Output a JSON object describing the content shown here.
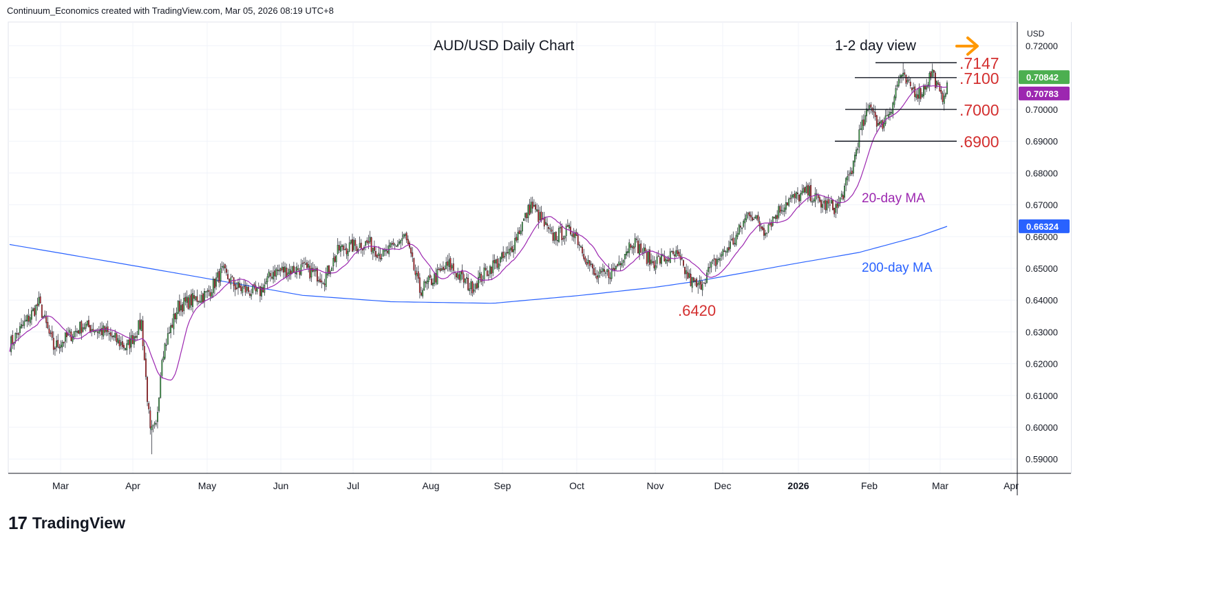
{
  "header": {
    "attribution": "Continuum_Economics created with TradingView.com, Mar 05, 2026 08:19 UTC+8"
  },
  "footer": {
    "brand": "TradingView",
    "logo_glyph": "17"
  },
  "colors": {
    "up": "#4caf50",
    "down": "#d32f2f",
    "ma20": "#9c27b0",
    "ma200": "#2962ff",
    "level": "#d32f2f",
    "arrow": "#ff9800",
    "last_price_bg": "#4caf50"
  },
  "chart_data": {
    "type": "candlestick",
    "title": "AUD/USD Daily Chart",
    "view_label": "1-2 day view",
    "arrow_icon": "right-arrow-icon",
    "currency": "USD",
    "ylim": [
      0.5855,
      0.7275
    ],
    "y_ticks": [
      "0.72000",
      "0.71000",
      "0.70000",
      "0.69000",
      "0.68000",
      "0.67000",
      "0.66000",
      "0.65000",
      "0.64000",
      "0.63000",
      "0.62000",
      "0.61000",
      "0.60000",
      "0.59000"
    ],
    "x_labels": [
      "Mar",
      "Apr",
      "May",
      "Jun",
      "Jul",
      "Aug",
      "Sep",
      "Oct",
      "Nov",
      "Dec",
      "2026",
      "Feb",
      "Mar",
      "Apr"
    ],
    "price_badges": [
      {
        "label": "0.70842",
        "value": 0.70842,
        "color": "#4caf50"
      },
      {
        "label": "0.70783",
        "value": 0.70783,
        "color": "#9c27b0"
      },
      {
        "label": "0.66324",
        "value": 0.66324,
        "color": "#2962ff"
      }
    ],
    "levels": [
      {
        "label": ".7147",
        "value": 0.7147
      },
      {
        "label": ".7100",
        "value": 0.71
      },
      {
        "label": ".7000",
        "value": 0.7
      },
      {
        "label": ".6900",
        "value": 0.69
      }
    ],
    "annotations": [
      {
        "label": ".6420",
        "value": 0.642
      },
      {
        "label": "20-day MA"
      },
      {
        "label": "200-day MA"
      }
    ],
    "close_anchors": [
      [
        0,
        0.626
      ],
      [
        20,
        0.639
      ],
      [
        30,
        0.625
      ],
      [
        50,
        0.632
      ],
      [
        65,
        0.63
      ],
      [
        80,
        0.625
      ],
      [
        90,
        0.633
      ],
      [
        96,
        0.598
      ],
      [
        100,
        0.6
      ],
      [
        104,
        0.623
      ],
      [
        115,
        0.638
      ],
      [
        135,
        0.642
      ],
      [
        145,
        0.649
      ],
      [
        155,
        0.644
      ],
      [
        170,
        0.642
      ],
      [
        180,
        0.649
      ],
      [
        200,
        0.65
      ],
      [
        215,
        0.647
      ],
      [
        225,
        0.656
      ],
      [
        245,
        0.658
      ],
      [
        255,
        0.654
      ],
      [
        270,
        0.66
      ],
      [
        280,
        0.643
      ],
      [
        300,
        0.651
      ],
      [
        315,
        0.644
      ],
      [
        330,
        0.651
      ],
      [
        340,
        0.654
      ],
      [
        356,
        0.67
      ],
      [
        370,
        0.66
      ],
      [
        385,
        0.662
      ],
      [
        400,
        0.647
      ],
      [
        412,
        0.649
      ],
      [
        425,
        0.659
      ],
      [
        438,
        0.652
      ],
      [
        455,
        0.654
      ],
      [
        465,
        0.646
      ],
      [
        470,
        0.644
      ],
      [
        480,
        0.651
      ],
      [
        495,
        0.659
      ],
      [
        505,
        0.668
      ],
      [
        515,
        0.662
      ],
      [
        530,
        0.671
      ],
      [
        545,
        0.674
      ],
      [
        555,
        0.67
      ],
      [
        565,
        0.669
      ],
      [
        575,
        0.681
      ],
      [
        580,
        0.692
      ],
      [
        588,
        0.702
      ],
      [
        594,
        0.694
      ],
      [
        602,
        0.701
      ],
      [
        608,
        0.711
      ],
      [
        614,
        0.707
      ],
      [
        622,
        0.705
      ],
      [
        630,
        0.712
      ],
      [
        636,
        0.703
      ],
      [
        640,
        0.7084
      ]
    ],
    "ma200_anchors": [
      [
        0,
        0.6575
      ],
      [
        70,
        0.652
      ],
      [
        120,
        0.648
      ],
      [
        200,
        0.6415
      ],
      [
        260,
        0.6395
      ],
      [
        330,
        0.639
      ],
      [
        390,
        0.6415
      ],
      [
        440,
        0.644
      ],
      [
        470,
        0.646
      ],
      [
        530,
        0.651
      ],
      [
        580,
        0.655
      ],
      [
        620,
        0.66
      ],
      [
        640,
        0.6632
      ]
    ]
  }
}
